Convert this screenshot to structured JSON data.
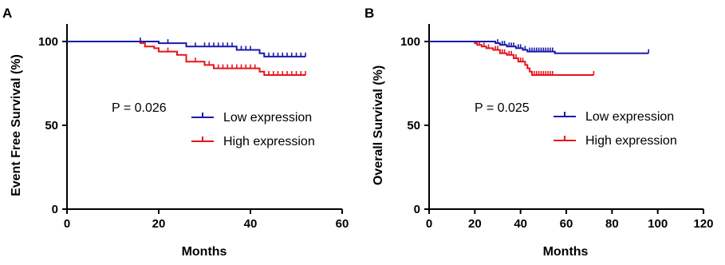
{
  "chart_data": [
    {
      "panel_label": "A",
      "type": "line",
      "subtype": "kaplan-meier step curve with censor ticks",
      "ylabel": "Event Free Survival (%)",
      "xlabel": "Months",
      "xlim": [
        0,
        60
      ],
      "ylim": [
        0,
        100
      ],
      "xticks": [
        "0",
        "20",
        "40",
        "60"
      ],
      "yticks": [
        "0",
        "50",
        "100"
      ],
      "annotation": "P = 0.026",
      "legend_position": "center-right",
      "series": [
        {
          "name": "Low expression",
          "color": "#1a1aaa",
          "steps": [
            [
              0,
              100
            ],
            [
              20,
              99
            ],
            [
              26,
              97
            ],
            [
              37,
              95
            ],
            [
              42,
              93
            ],
            [
              43,
              91
            ],
            [
              52,
              91
            ]
          ],
          "censors": [
            [
              16,
              100
            ],
            [
              22,
              99
            ],
            [
              28,
              97
            ],
            [
              30,
              97
            ],
            [
              31,
              97
            ],
            [
              32,
              97
            ],
            [
              33,
              97
            ],
            [
              34,
              97
            ],
            [
              35,
              97
            ],
            [
              36,
              97
            ],
            [
              38,
              95
            ],
            [
              39,
              95
            ],
            [
              40,
              95
            ],
            [
              44,
              91
            ],
            [
              45,
              91
            ],
            [
              46,
              91
            ],
            [
              47,
              91
            ],
            [
              48,
              91
            ],
            [
              49,
              91
            ],
            [
              50,
              91
            ],
            [
              51,
              91
            ],
            [
              52,
              91
            ]
          ]
        },
        {
          "name": "High expression",
          "color": "#e8141b",
          "steps": [
            [
              0,
              100
            ],
            [
              16,
              99
            ],
            [
              17,
              97
            ],
            [
              19,
              96
            ],
            [
              20,
              94
            ],
            [
              24,
              92
            ],
            [
              26,
              88
            ],
            [
              30,
              86
            ],
            [
              32,
              84
            ],
            [
              42,
              82
            ],
            [
              43,
              80
            ],
            [
              52,
              80
            ]
          ],
          "censors": [
            [
              22,
              94
            ],
            [
              28,
              88
            ],
            [
              31,
              86
            ],
            [
              33,
              84
            ],
            [
              34,
              84
            ],
            [
              35,
              84
            ],
            [
              36,
              84
            ],
            [
              37,
              84
            ],
            [
              38,
              84
            ],
            [
              39,
              84
            ],
            [
              40,
              84
            ],
            [
              41,
              84
            ],
            [
              44,
              80
            ],
            [
              45,
              80
            ],
            [
              46,
              80
            ],
            [
              47,
              80
            ],
            [
              48,
              80
            ],
            [
              49,
              80
            ],
            [
              50,
              80
            ],
            [
              51,
              80
            ],
            [
              52,
              80
            ]
          ]
        }
      ]
    },
    {
      "panel_label": "B",
      "type": "line",
      "subtype": "kaplan-meier step curve with censor ticks",
      "ylabel": "Overall Survival (%)",
      "xlabel": "Months",
      "xlim": [
        0,
        120
      ],
      "ylim": [
        0,
        100
      ],
      "xticks": [
        "0",
        "20",
        "40",
        "60",
        "80",
        "100",
        "120"
      ],
      "yticks": [
        "0",
        "50",
        "100"
      ],
      "annotation": "P = 0.025",
      "legend_position": "center-right",
      "series": [
        {
          "name": "Low expression",
          "color": "#1a1aaa",
          "steps": [
            [
              0,
              100
            ],
            [
              29,
              99
            ],
            [
              31,
              98
            ],
            [
              34,
              97
            ],
            [
              38,
              96
            ],
            [
              41,
              95
            ],
            [
              43,
              94
            ],
            [
              55,
              93
            ],
            [
              96,
              93
            ]
          ],
          "censors": [
            [
              30,
              99
            ],
            [
              32,
              98
            ],
            [
              33,
              98
            ],
            [
              35,
              97
            ],
            [
              36,
              97
            ],
            [
              37,
              97
            ],
            [
              39,
              96
            ],
            [
              40,
              96
            ],
            [
              42,
              95
            ],
            [
              44,
              94
            ],
            [
              45,
              94
            ],
            [
              46,
              94
            ],
            [
              47,
              94
            ],
            [
              48,
              94
            ],
            [
              49,
              94
            ],
            [
              50,
              94
            ],
            [
              51,
              94
            ],
            [
              52,
              94
            ],
            [
              53,
              94
            ],
            [
              54,
              94
            ],
            [
              96,
              93
            ]
          ]
        },
        {
          "name": "High expression",
          "color": "#e8141b",
          "steps": [
            [
              0,
              100
            ],
            [
              20,
              99
            ],
            [
              21,
              98
            ],
            [
              23,
              97
            ],
            [
              25,
              96
            ],
            [
              28,
              95
            ],
            [
              31,
              93
            ],
            [
              34,
              92
            ],
            [
              37,
              90
            ],
            [
              39,
              88
            ],
            [
              42,
              86
            ],
            [
              43,
              84
            ],
            [
              44,
              82
            ],
            [
              45,
              80
            ],
            [
              72,
              80
            ]
          ],
          "censors": [
            [
              22,
              98
            ],
            [
              24,
              97
            ],
            [
              26,
              96
            ],
            [
              29,
              95
            ],
            [
              30,
              95
            ],
            [
              32,
              93
            ],
            [
              33,
              93
            ],
            [
              35,
              92
            ],
            [
              36,
              92
            ],
            [
              38,
              90
            ],
            [
              40,
              88
            ],
            [
              41,
              88
            ],
            [
              46,
              80
            ],
            [
              47,
              80
            ],
            [
              48,
              80
            ],
            [
              49,
              80
            ],
            [
              50,
              80
            ],
            [
              51,
              80
            ],
            [
              52,
              80
            ],
            [
              53,
              80
            ],
            [
              54,
              80
            ],
            [
              72,
              80
            ]
          ]
        }
      ]
    }
  ]
}
